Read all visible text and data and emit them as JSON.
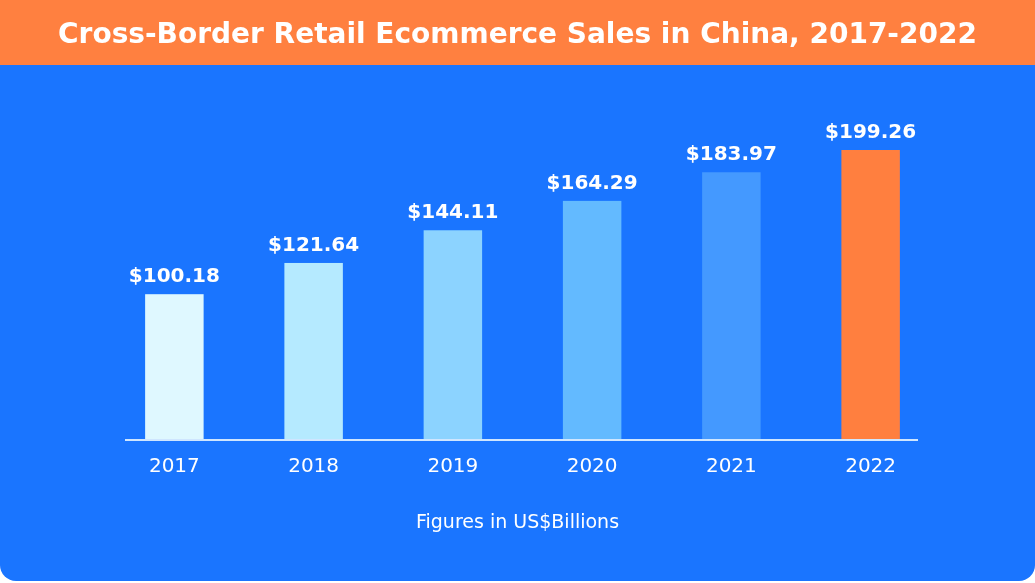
{
  "chart_data": {
    "type": "bar",
    "title": "Cross-Border Retail Ecommerce Sales in China, 2017-2022",
    "categories": [
      "2017",
      "2018",
      "2019",
      "2020",
      "2021",
      "2022"
    ],
    "values": [
      100.18,
      121.64,
      144.11,
      164.29,
      183.97,
      199.26
    ],
    "value_labels": [
      "$100.18",
      "$121.64",
      "$144.11",
      "$164.29",
      "$183.97",
      "$199.26"
    ],
    "colors": [
      "#dff8ff",
      "#b5eaff",
      "#8cd3ff",
      "#63baff",
      "#4499ff",
      "#ff7f3f"
    ],
    "annotations": [
      "Figures in US$Billions"
    ]
  }
}
